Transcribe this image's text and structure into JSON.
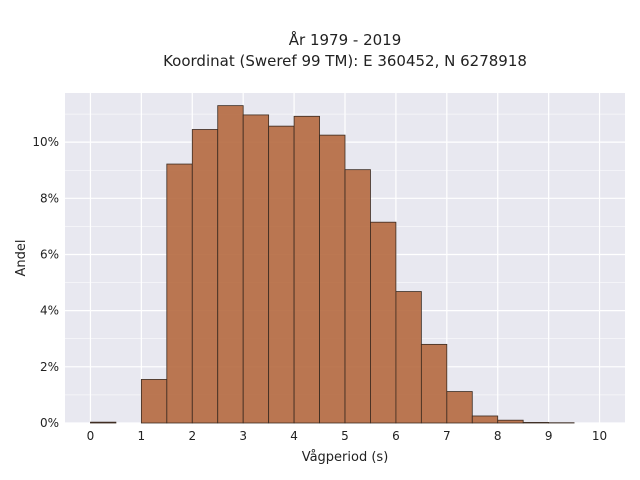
{
  "chart_data": {
    "type": "bar",
    "title": [
      "År 1979 - 2019",
      "Koordinat (Sweref 99 TM): E 360452, N 6278918"
    ],
    "xlabel": "Vågperiod (s)",
    "ylabel": "Andel",
    "xlim": [
      -0.5,
      10.5
    ],
    "ylim": [
      0,
      0.1175
    ],
    "x_ticks": [
      0,
      1,
      2,
      3,
      4,
      5,
      6,
      7,
      8,
      9,
      10
    ],
    "y_ticks": [
      0,
      0.02,
      0.04,
      0.06,
      0.08,
      0.1
    ],
    "y_tick_labels": [
      "0%",
      "2%",
      "4%",
      "6%",
      "8%",
      "10%"
    ],
    "bin_width": 0.5,
    "bins": [
      {
        "x": 0.0,
        "value": 0.0003
      },
      {
        "x": 0.5,
        "value": 0.0
      },
      {
        "x": 1.0,
        "value": 0.0155
      },
      {
        "x": 1.5,
        "value": 0.0922
      },
      {
        "x": 2.0,
        "value": 0.1045
      },
      {
        "x": 2.5,
        "value": 0.113
      },
      {
        "x": 3.0,
        "value": 0.1097
      },
      {
        "x": 3.5,
        "value": 0.1057
      },
      {
        "x": 4.0,
        "value": 0.1092
      },
      {
        "x": 4.5,
        "value": 0.1025
      },
      {
        "x": 5.0,
        "value": 0.0902
      },
      {
        "x": 5.5,
        "value": 0.0715
      },
      {
        "x": 6.0,
        "value": 0.0468
      },
      {
        "x": 6.5,
        "value": 0.028
      },
      {
        "x": 7.0,
        "value": 0.0112
      },
      {
        "x": 7.5,
        "value": 0.0025
      },
      {
        "x": 8.0,
        "value": 0.001
      },
      {
        "x": 8.5,
        "value": 0.0002
      },
      {
        "x": 9.0,
        "value": 0.0001
      },
      {
        "x": 9.5,
        "value": 0.0
      }
    ],
    "grid": true,
    "legend": "none",
    "colors": {
      "bar_fill": "#b5693f",
      "bar_stroke": "#3a2a20",
      "plot_background": "#e8e8f0",
      "grid": "#ffffff"
    }
  }
}
